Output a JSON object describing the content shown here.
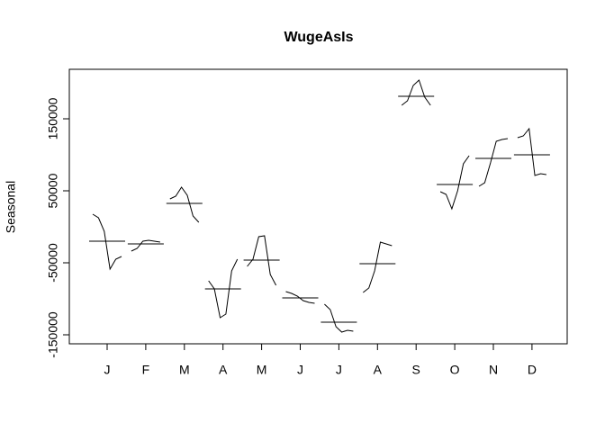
{
  "chart_data": {
    "type": "monthplot",
    "title": "WugeAsIs",
    "y_label": "Seasonal",
    "categories": [
      "J",
      "F",
      "M",
      "A",
      "M",
      "J",
      "J",
      "A",
      "S",
      "O",
      "N",
      "D"
    ],
    "values": [
      [
        17500,
        12500,
        -6250,
        -58750,
        -45000,
        -41250
      ],
      [
        -33750,
        -30000,
        -20000,
        -18750,
        -20000,
        -21250
      ],
      [
        38750,
        42500,
        55000,
        43750,
        15000,
        6250
      ],
      [
        -75000,
        -86250,
        -126250,
        -121250,
        -61250,
        -45000
      ],
      [
        -55000,
        -45000,
        -13750,
        -12500,
        -66250,
        -81250
      ],
      [
        -90000,
        -92500,
        -96250,
        -102500,
        -105000,
        -106250
      ],
      [
        -107500,
        -115000,
        -138750,
        -146250,
        -143750,
        -145000
      ],
      [
        -91250,
        -85000,
        -61250,
        -21250,
        -23750,
        -26250
      ],
      [
        168750,
        175000,
        196250,
        203750,
        180000,
        168750
      ],
      [
        48750,
        45000,
        25000,
        50000,
        87500,
        98750
      ],
      [
        56250,
        61250,
        88750,
        118750,
        121250,
        122500
      ],
      [
        123750,
        126250,
        136250,
        71250,
        73750,
        72500
      ]
    ],
    "means": [
      -20000,
      -23750,
      32500,
      -86250,
      -46250,
      -98750,
      -132500,
      -51250,
      181250,
      58750,
      95000,
      100000
    ],
    "ylim": [
      -162500,
      218750
    ],
    "yticks": [
      -150000,
      -50000,
      50000,
      150000
    ]
  }
}
